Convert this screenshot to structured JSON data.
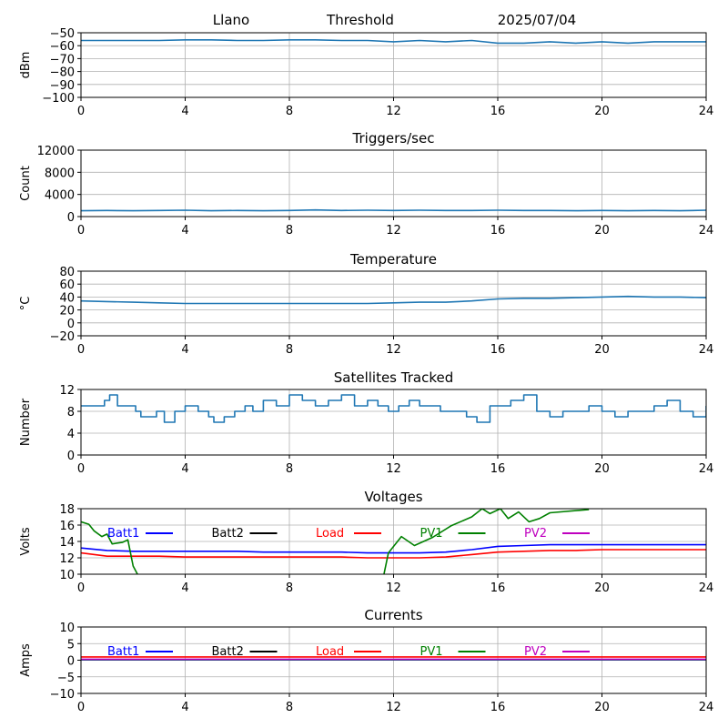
{
  "header": {
    "site": "Llano",
    "mode": "Threshold",
    "date": "2025/07/04"
  },
  "colors": {
    "series": "#1f77b4",
    "grid": "#b0b0b0",
    "batt1": "#0000ff",
    "batt2": "#000000",
    "load": "#ff0000",
    "pv1": "#008000",
    "pv2": "#bf00bf"
  },
  "chart_data": [
    {
      "type": "line",
      "title": "",
      "xlabel": "",
      "ylabel": "dBm",
      "xlim": [
        0,
        24
      ],
      "ylim": [
        -100,
        -50
      ],
      "xticks": [
        "0",
        "4",
        "8",
        "12",
        "16",
        "20",
        "24"
      ],
      "yticks": [
        "−100",
        "−90",
        "−80",
        "−70",
        "−60",
        "−50"
      ],
      "grid": true,
      "series": [
        {
          "x": [
            0,
            1,
            2,
            3,
            4,
            5,
            6,
            7,
            8,
            9,
            10,
            11,
            12,
            13,
            14,
            15,
            16,
            17,
            18,
            19,
            20,
            21,
            22,
            23,
            24
          ],
          "values": [
            -56,
            -56,
            -56,
            -56,
            -55.5,
            -55.5,
            -56,
            -56,
            -55.5,
            -55.5,
            -56,
            -56,
            -57,
            -56,
            -57,
            -56,
            -58,
            -58,
            -57,
            -58,
            -57,
            -58,
            -57,
            -57,
            -57
          ]
        }
      ]
    },
    {
      "type": "line",
      "title": "Triggers/sec",
      "xlabel": "",
      "ylabel": "Count",
      "xlim": [
        0,
        24
      ],
      "ylim": [
        0,
        12500
      ],
      "xticks": [
        "0",
        "4",
        "8",
        "12",
        "16",
        "20",
        "24"
      ],
      "yticks": [
        "0",
        "4000",
        "8000",
        "12000"
      ],
      "grid": true,
      "series": [
        {
          "x": [
            0,
            1,
            2,
            3,
            4,
            5,
            6,
            7,
            8,
            9,
            10,
            11,
            12,
            13,
            14,
            15,
            16,
            17,
            18,
            19,
            20,
            21,
            22,
            23,
            24
          ],
          "values": [
            1100,
            1150,
            1100,
            1150,
            1200,
            1100,
            1150,
            1100,
            1150,
            1250,
            1150,
            1200,
            1150,
            1200,
            1150,
            1150,
            1200,
            1150,
            1150,
            1100,
            1150,
            1100,
            1150,
            1100,
            1200
          ]
        }
      ]
    },
    {
      "type": "line",
      "title": "Temperature",
      "xlabel": "",
      "ylabel": "°C",
      "xlim": [
        0,
        24
      ],
      "ylim": [
        -20,
        80
      ],
      "xticks": [
        "0",
        "4",
        "8",
        "12",
        "16",
        "20",
        "24"
      ],
      "yticks": [
        "−20",
        "0",
        "20",
        "40",
        "60",
        "80"
      ],
      "grid": true,
      "series": [
        {
          "x": [
            0,
            1,
            2,
            3,
            4,
            5,
            6,
            7,
            8,
            9,
            10,
            11,
            12,
            13,
            14,
            15,
            16,
            17,
            18,
            19,
            20,
            21,
            22,
            23,
            24
          ],
          "values": [
            34,
            33,
            32,
            31,
            30,
            30,
            30,
            30,
            30,
            30,
            30,
            30,
            31,
            32,
            32,
            34,
            37,
            38,
            38,
            39,
            40,
            41,
            40,
            40,
            39
          ]
        }
      ]
    },
    {
      "type": "line",
      "title": "Satellites Tracked",
      "xlabel": "",
      "ylabel": "Number",
      "xlim": [
        0,
        24
      ],
      "ylim": [
        0,
        12
      ],
      "xticks": [
        "0",
        "4",
        "8",
        "12",
        "16",
        "20",
        "24"
      ],
      "yticks": [
        "0",
        "4",
        "8",
        "12"
      ],
      "grid": true,
      "step": true,
      "series": [
        {
          "x": [
            0,
            0.9,
            1.1,
            1.4,
            2.1,
            2.3,
            2.9,
            3.2,
            3.6,
            4.0,
            4.5,
            4.9,
            5.1,
            5.5,
            5.9,
            6.3,
            6.6,
            7.0,
            7.5,
            8.0,
            8.5,
            9.0,
            9.5,
            10.0,
            10.5,
            11.0,
            11.4,
            11.8,
            12.2,
            12.6,
            13.0,
            13.4,
            13.8,
            14.3,
            14.8,
            15.2,
            15.7,
            16.0,
            16.5,
            17.0,
            17.5,
            18.0,
            18.5,
            19.0,
            19.5,
            20.0,
            20.5,
            21.0,
            21.5,
            22.0,
            22.5,
            23.0,
            23.5,
            24.0
          ],
          "values": [
            9,
            10,
            11,
            9,
            8,
            7,
            8,
            6,
            8,
            9,
            8,
            7,
            6,
            7,
            8,
            9,
            8,
            10,
            9,
            11,
            10,
            9,
            10,
            11,
            9,
            10,
            9,
            8,
            9,
            10,
            9,
            9,
            8,
            8,
            7,
            6,
            9,
            9,
            10,
            11,
            8,
            7,
            8,
            8,
            9,
            8,
            7,
            8,
            8,
            9,
            10,
            8,
            7,
            9
          ]
        }
      ]
    },
    {
      "type": "line",
      "title": "Voltages",
      "xlabel": "",
      "ylabel": "Volts",
      "xlim": [
        0,
        24
      ],
      "ylim": [
        10,
        18
      ],
      "xticks": [
        "0",
        "4",
        "8",
        "12",
        "16",
        "20",
        "24"
      ],
      "yticks": [
        "10",
        "12",
        "14",
        "16",
        "18"
      ],
      "grid": true,
      "legend": "top",
      "series": [
        {
          "name": "Batt1",
          "color": "#0000ff",
          "x": [
            0,
            1,
            2,
            3,
            4,
            5,
            6,
            7,
            8,
            9,
            10,
            11,
            12,
            13,
            14,
            15,
            16,
            17,
            18,
            19,
            20,
            21,
            22,
            23,
            24
          ],
          "values": [
            13.2,
            12.9,
            12.8,
            12.8,
            12.8,
            12.8,
            12.8,
            12.7,
            12.7,
            12.7,
            12.7,
            12.6,
            12.6,
            12.6,
            12.7,
            13.0,
            13.4,
            13.5,
            13.6,
            13.6,
            13.6,
            13.6,
            13.6,
            13.6,
            13.6
          ]
        },
        {
          "name": "Batt2",
          "color": "#000000",
          "x": [],
          "values": []
        },
        {
          "name": "Load",
          "color": "#ff0000",
          "x": [
            0,
            1,
            2,
            3,
            4,
            5,
            6,
            7,
            8,
            9,
            10,
            11,
            12,
            13,
            14,
            15,
            16,
            17,
            18,
            19,
            20,
            21,
            22,
            23,
            24
          ],
          "values": [
            12.6,
            12.2,
            12.2,
            12.2,
            12.1,
            12.1,
            12.1,
            12.1,
            12.1,
            12.1,
            12.1,
            12.0,
            12.0,
            12.0,
            12.1,
            12.4,
            12.7,
            12.8,
            12.9,
            12.9,
            13.0,
            13.0,
            13.0,
            13.0,
            13.0
          ]
        },
        {
          "name": "PV1",
          "color": "#008000",
          "x": [
            0,
            0.3,
            0.5,
            0.8,
            1.0,
            1.2,
            1.6,
            1.8,
            2.0,
            2.5,
            11.5,
            11.8,
            12.3,
            12.8,
            13.5,
            14.2,
            15.0,
            15.4,
            15.7,
            16.1,
            16.4,
            16.8,
            17.2,
            17.6,
            18.0,
            19.5
          ],
          "values": [
            16.4,
            16.1,
            15.3,
            14.6,
            14.9,
            13.7,
            13.9,
            14.2,
            11.0,
            8.0,
            8.0,
            12.6,
            14.6,
            13.5,
            14.5,
            15.9,
            17.0,
            18.0,
            17.4,
            18.0,
            16.8,
            17.6,
            16.4,
            16.8,
            17.5,
            17.9
          ]
        },
        {
          "name": "PV2",
          "color": "#bf00bf",
          "x": [],
          "values": []
        }
      ]
    },
    {
      "type": "line",
      "title": "Currents",
      "xlabel": "",
      "ylabel": "Amps",
      "xlim": [
        0,
        24
      ],
      "ylim": [
        -10,
        10
      ],
      "xticks": [
        "0",
        "4",
        "8",
        "12",
        "16",
        "20",
        "24"
      ],
      "yticks": [
        "−10",
        "−5",
        "0",
        "5",
        "10"
      ],
      "grid": true,
      "legend": "top",
      "series": [
        {
          "name": "Batt1",
          "color": "#0000ff",
          "x": [
            0,
            24
          ],
          "values": [
            0.1,
            0.1
          ]
        },
        {
          "name": "Batt2",
          "color": "#000000",
          "x": [],
          "values": []
        },
        {
          "name": "Load",
          "color": "#ff0000",
          "x": [
            0,
            24
          ],
          "values": [
            1.0,
            1.0
          ]
        },
        {
          "name": "PV1",
          "color": "#008000",
          "x": [
            0,
            24
          ],
          "values": [
            0.2,
            0.2
          ]
        },
        {
          "name": "PV2",
          "color": "#bf00bf",
          "x": [
            0,
            24
          ],
          "values": [
            0.3,
            0.3
          ]
        }
      ]
    }
  ]
}
